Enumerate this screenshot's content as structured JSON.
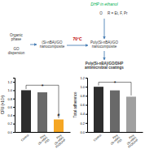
{
  "chart_data": [
    {
      "type": "flow",
      "annotations": [
        {
          "text": "DHP in ethanol",
          "color": "#00b050"
        },
        {
          "text": "R = Et, F, Pr"
        },
        {
          "text": "O"
        },
        {
          "text": "Organic\nphase"
        },
        {
          "text": "GO\ndispersion"
        },
        {
          "text": "(Si-nBA)/GO\nnanocomposite"
        },
        {
          "text": "70°C",
          "color": "#c00000"
        },
        {
          "text": "Poly(Si-nBA)/GO\nnanocomposite"
        },
        {
          "text": "Poly(Si-nBA)/GO/DHP\nantimicrobial coatings"
        }
      ]
    },
    {
      "type": "bar",
      "y_label": "CFU (×10⁵)",
      "categories": [
        "Control",
        "Poly\n(Si-nBA)\n/GO",
        "Poly\n(Si-nBA)\n/GO/DHP"
      ],
      "values": [
        1.0,
        0.95,
        0.3
      ],
      "colors": [
        "#2d2d2d",
        "#696969",
        "#f5a623"
      ],
      "ylim": [
        0,
        1.3
      ],
      "yticks": [
        {
          "value": 0,
          "label": "0.0"
        },
        0.2,
        0.4,
        0.6,
        0.8,
        {
          "value": 1,
          "label": "1.0"
        },
        1.2
      ],
      "annotations": [
        {
          "text": "*",
          "type": "bracket",
          "y": 1.12
        },
        {
          "text": "#",
          "category": 2,
          "y": 0.36
        }
      ]
    },
    {
      "type": "bar",
      "y_label": "Total adherence",
      "categories": [
        "Control",
        "Poly\n(Si-nBA)\n/GO",
        "Poly\n(Si-nBA)\n/GO/DHP"
      ],
      "values": [
        1.0,
        0.92,
        0.78
      ],
      "colors": [
        "#2d2d2d",
        "#696969",
        "#a0a0a0"
      ],
      "ylim": [
        0,
        1.2
      ],
      "yticks": [
        {
          "value": 0,
          "label": "0.0"
        },
        0.2,
        0.4,
        0.6,
        0.8,
        {
          "value": 1,
          "label": "1.0"
        },
        1.2
      ],
      "annotations": [
        {
          "text": "*",
          "type": "bracket",
          "y": 1.1
        }
      ]
    }
  ]
}
